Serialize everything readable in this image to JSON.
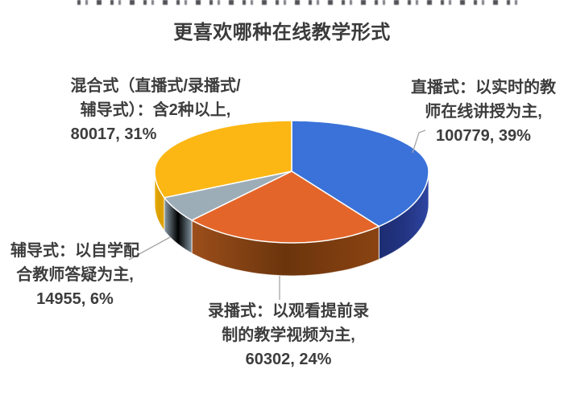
{
  "chart_data": {
    "type": "pie",
    "style": "3d",
    "title": "更喜欢哪种在线教学形式",
    "direction": "clockwise",
    "start_angle_deg": 0,
    "legend": "none",
    "text_color": "#3d3d3d",
    "leader_line_color": "#a6a6a6",
    "slices": [
      {
        "name": "直播式",
        "label_lines": [
          "直播式：以实时的教",
          "师在线讲授为主,",
          "100779, 39%"
        ],
        "value": 100779,
        "percent": 39,
        "color": "#3a72d9",
        "side_color": "#1f2f7a",
        "side_gradient": [
          "#1d2d72",
          "#223481",
          "#2e44a0"
        ]
      },
      {
        "name": "录播式",
        "label_lines": [
          "录播式：以观看提前录",
          "制的教学视频为主,",
          "60302, 24%"
        ],
        "value": 60302,
        "percent": 24,
        "color": "#e4652a",
        "side_color": "#7a3e10",
        "side_gradient": [
          "#9c4e1b",
          "#6b350c",
          "#8a4312"
        ]
      },
      {
        "name": "辅导式",
        "label_lines": [
          "辅导式：以自学配",
          "合教师答疑为主,",
          "14955, 6%"
        ],
        "value": 14955,
        "percent": 6,
        "color": "#9dadb8",
        "side_color": "#7e919c",
        "side_gradient": [
          "#8a9ca7",
          "#76club",
          "#7e919c"
        ]
      },
      {
        "name": "混合式",
        "label_lines": [
          "混合式（直播式/录播式/",
          "辅导式）：含2种以上,",
          "80017, 31%"
        ],
        "value": 80017,
        "percent": 31,
        "color": "#fcb714",
        "side_color": "#e2a50a",
        "side_gradient": [
          "#e8ab08",
          "#d99e05",
          "#e2a50a"
        ]
      }
    ]
  }
}
